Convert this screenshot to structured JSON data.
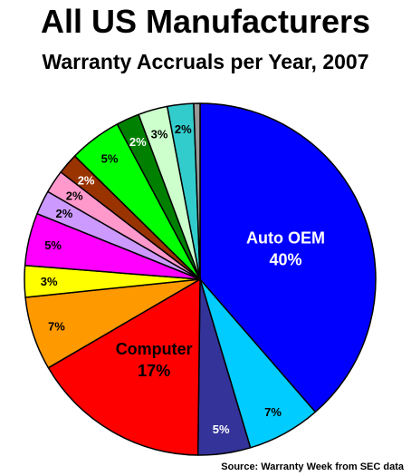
{
  "chart_data": {
    "type": "pie",
    "title": "All US Manufacturers",
    "subtitle": "Warranty Accruals per Year, 2007",
    "source": "Source: Warranty Week from SEC data",
    "slices": [
      {
        "category": "Auto OEM",
        "value_label": "40%",
        "value": 40,
        "color": "#0000ff",
        "label_color": "#ffffff"
      },
      {
        "category": "",
        "value_label": "7%",
        "value": 7,
        "color": "#00ccff",
        "label_color": "#000000"
      },
      {
        "category": "",
        "value_label": "5%",
        "value": 5,
        "color": "#333399",
        "label_color": "#ffffff"
      },
      {
        "category": "Computer",
        "value_label": "17%",
        "value": 17,
        "color": "#ff0000",
        "label_color": "#000000"
      },
      {
        "category": "",
        "value_label": "7%",
        "value": 7,
        "color": "#ff9900",
        "label_color": "#000000"
      },
      {
        "category": "",
        "value_label": "3%",
        "value": 3,
        "color": "#ffff00",
        "label_color": "#000000"
      },
      {
        "category": "",
        "value_label": "5%",
        "value": 5,
        "color": "#ff00ff",
        "label_color": "#000000"
      },
      {
        "category": "",
        "value_label": "2%",
        "value": 2.3,
        "color": "#cc99ff",
        "label_color": "#000000"
      },
      {
        "category": "",
        "value_label": "2%",
        "value": 2.2,
        "color": "#ff99cc",
        "label_color": "#000000"
      },
      {
        "category": "",
        "value_label": "2%",
        "value": 2,
        "color": "#993300",
        "label_color": "#ffffff"
      },
      {
        "category": "",
        "value_label": "5%",
        "value": 5,
        "color": "#00ff00",
        "label_color": "#000000"
      },
      {
        "category": "",
        "value_label": "2%",
        "value": 2.2,
        "color": "#008000",
        "label_color": "#ffffff"
      },
      {
        "category": "",
        "value_label": "3%",
        "value": 2.8,
        "color": "#ccffcc",
        "label_color": "#000000"
      },
      {
        "category": "",
        "value_label": "2%",
        "value": 2.5,
        "color": "#33cccc",
        "label_color": "#000000"
      },
      {
        "category": "",
        "value_label": "",
        "value": 0.6,
        "color": "#999999",
        "label_color": "#000000"
      }
    ],
    "start_angle": "12 o'clock",
    "direction": "clockwise"
  }
}
